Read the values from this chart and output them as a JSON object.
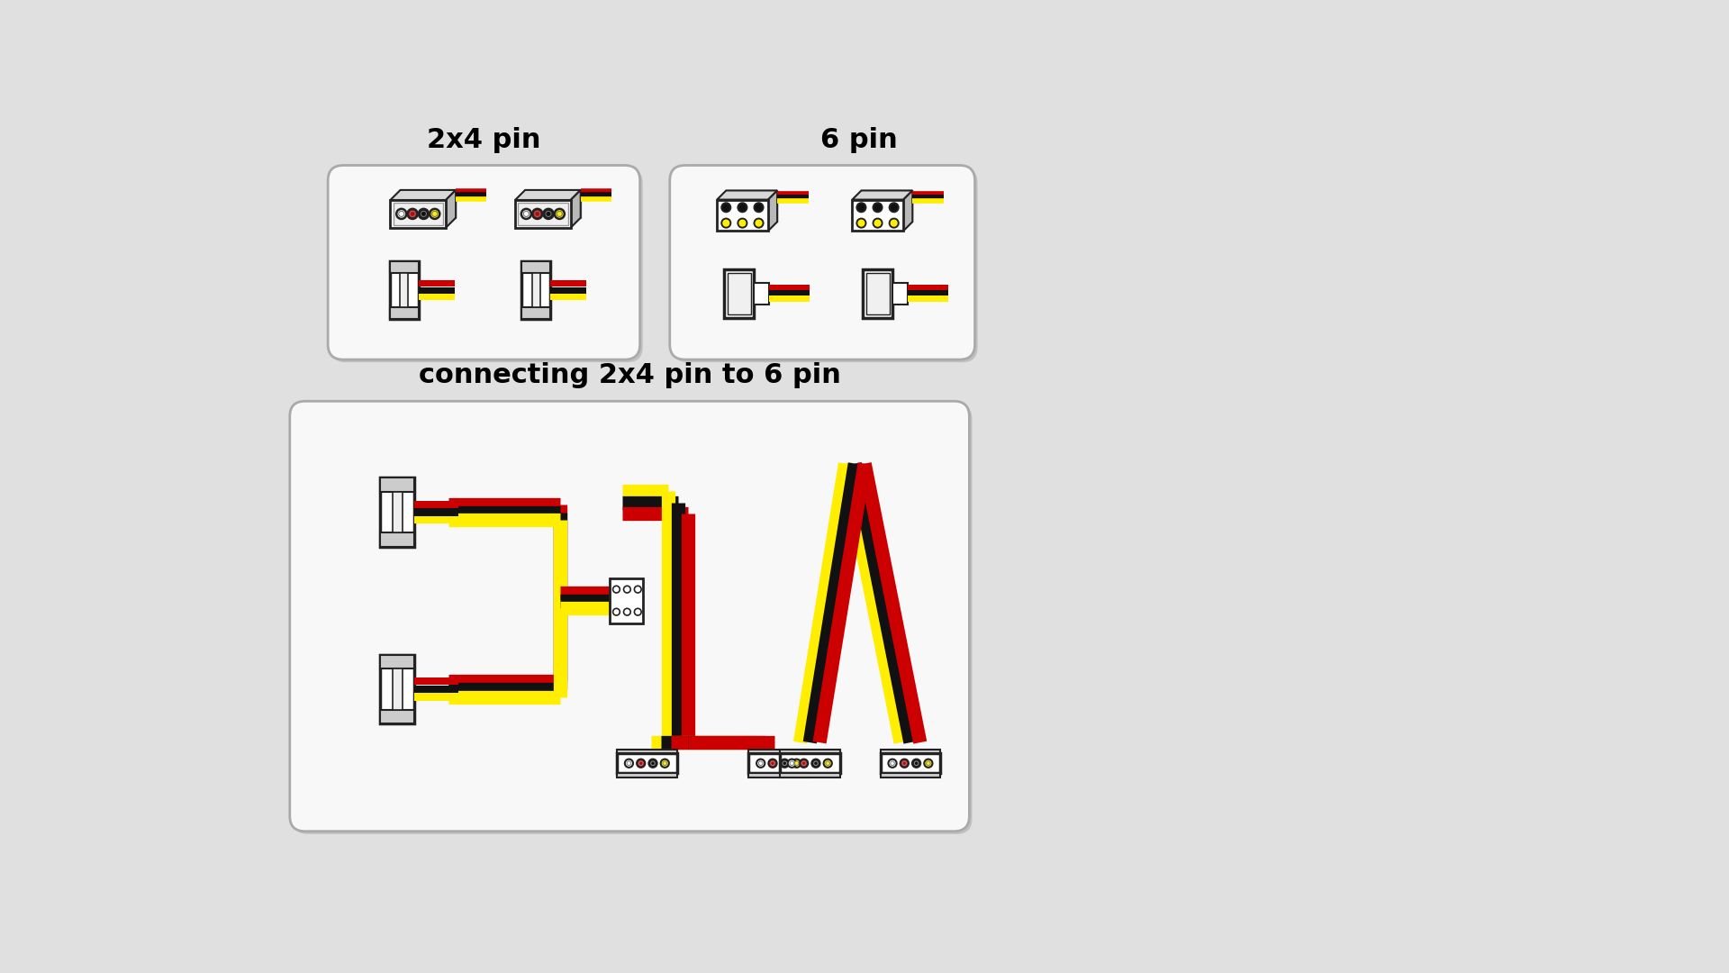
{
  "bg_color": "#e0e0e0",
  "panel_color": "#f8f8f8",
  "panel_edge": "#aaaaaa",
  "panel_shadow": "#c0c0c0",
  "title1": "2x4 pin",
  "title2": "6 pin",
  "title3": "connecting 2x4 pin to 6 pin",
  "title_fontsize": 22,
  "wire_red": "#cc0000",
  "wire_black": "#111111",
  "wire_yellow": "#ffee00",
  "connector_fill": "#ffffff",
  "connector_edge": "#222222",
  "latch_fill": "#cccccc",
  "wire_lw": 11
}
